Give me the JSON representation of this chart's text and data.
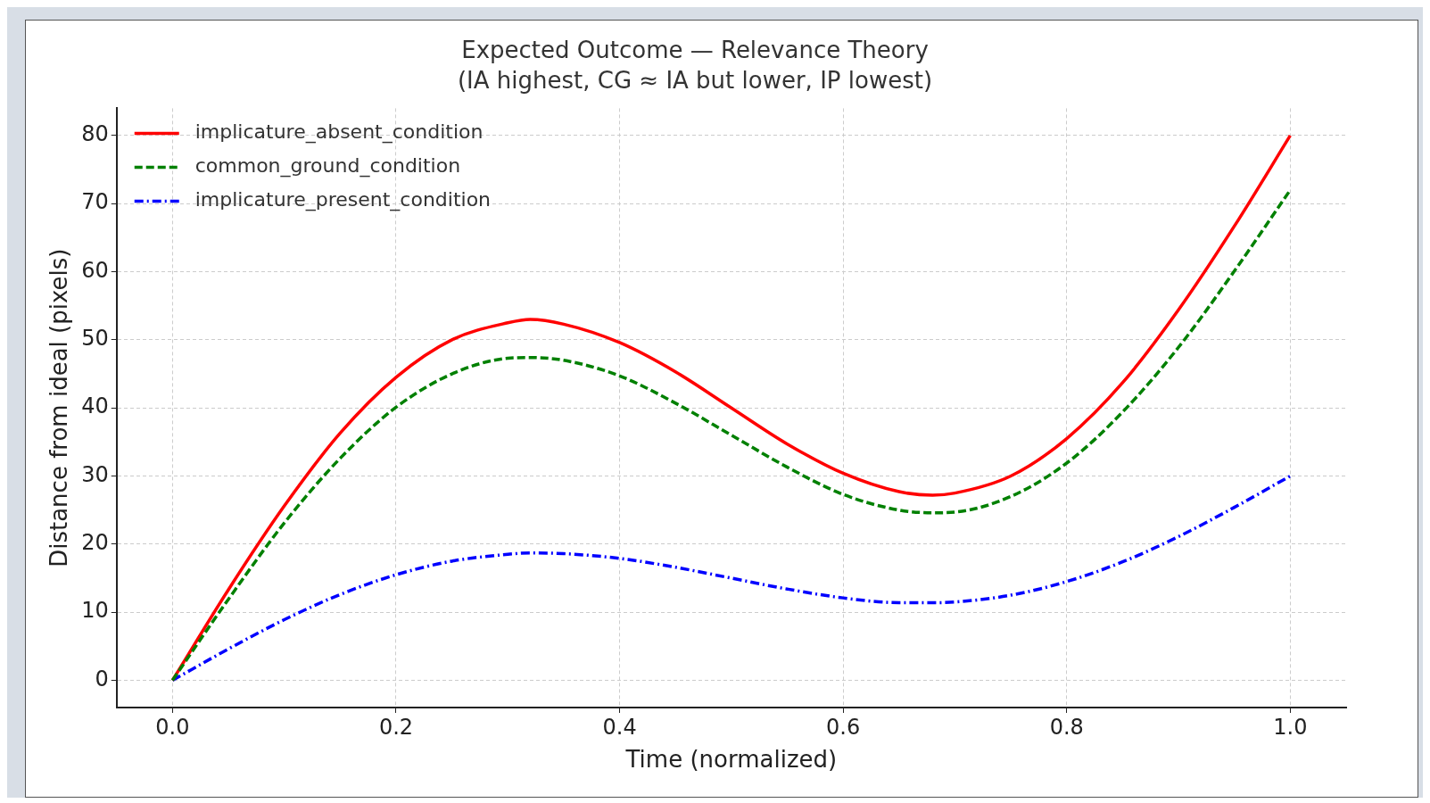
{
  "chart_data": {
    "type": "line",
    "title": "Expected Outcome — Relevance Theory",
    "subtitle": "(IA highest, CG ≈ IA but lower, IP lowest)",
    "xlabel": "Time (normalized)",
    "ylabel": "Distance from ideal (pixels)",
    "x": [
      0,
      0.05,
      0.1,
      0.15,
      0.2,
      0.25,
      0.3,
      0.32,
      0.35,
      0.4,
      0.45,
      0.5,
      0.55,
      0.6,
      0.65,
      0.68,
      0.7,
      0.75,
      0.8,
      0.85,
      0.9,
      0.95,
      1
    ],
    "series": [
      {
        "name": "implicature_absent_condition",
        "color": "#ff0000",
        "line_style": "solid",
        "values": [
          0,
          13.3,
          25.6,
          36.3,
          44.5,
          50,
          52.5,
          53,
          52.3,
          49.6,
          45.3,
          40,
          34.7,
          30.4,
          27.7,
          27.2,
          27.5,
          30,
          35.5,
          43.7,
          54.4,
          66.7,
          80
        ]
      },
      {
        "name": "common_ground_condition",
        "color": "#008000",
        "line_style": "dashed",
        "values": [
          0,
          11.9,
          23.1,
          32.6,
          40.1,
          45,
          47.3,
          47.4,
          47,
          44.7,
          40.7,
          36,
          31.3,
          27.3,
          25,
          24.6,
          24.7,
          27,
          31.9,
          39.4,
          48.9,
          60.1,
          72
        ]
      },
      {
        "name": "implicature_present_condition",
        "color": "#0000ff",
        "line_style": "dotted",
        "values": [
          0,
          4.6,
          8.9,
          12.6,
          15.5,
          17.5,
          18.5,
          18.7,
          18.6,
          17.9,
          16.6,
          15,
          13.4,
          12.1,
          11.4,
          11.4,
          11.5,
          12.5,
          14.5,
          17.4,
          21.1,
          25.4,
          30
        ]
      }
    ],
    "xlim": [
      -0.05,
      1.05
    ],
    "ylim": [
      -4,
      84
    ],
    "xticks": [
      {
        "value": 0,
        "label": "0.0"
      },
      {
        "value": 0.2,
        "label": "0.2"
      },
      {
        "value": 0.4,
        "label": "0.4"
      },
      {
        "value": 0.6,
        "label": "0.6"
      },
      {
        "value": 0.8,
        "label": "0.8"
      },
      {
        "value": 1,
        "label": "1.0"
      }
    ],
    "yticks": [
      0,
      10,
      20,
      30,
      40,
      50,
      60,
      70,
      80
    ],
    "grid": true,
    "legend": "top left",
    "marker": "none"
  }
}
